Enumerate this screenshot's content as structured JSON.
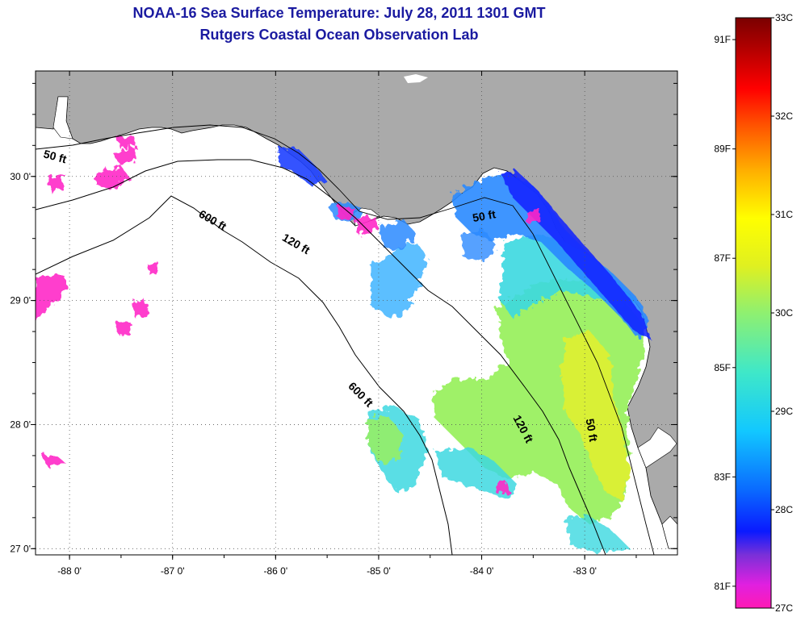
{
  "header": {
    "title": "NOAA-16 Sea Surface Temperature:  July 28, 2011 1301 GMT",
    "subtitle": "Rutgers Coastal Ocean Observation Lab"
  },
  "map": {
    "lon_range": [
      -88.33,
      -82.1
    ],
    "lat_range": [
      26.95,
      30.85
    ],
    "lon_ticks": [
      {
        "value": -88,
        "label": "-88 0'"
      },
      {
        "value": -87,
        "label": "-87 0'"
      },
      {
        "value": -86,
        "label": "-86 0'"
      },
      {
        "value": -85,
        "label": "-85 0'"
      },
      {
        "value": -84,
        "label": "-84 0'"
      },
      {
        "value": -83,
        "label": "-83 0'"
      }
    ],
    "lat_ticks": [
      {
        "value": 27,
        "label": "27 0'"
      },
      {
        "value": 28,
        "label": "28 0'"
      },
      {
        "value": 29,
        "label": "29 0'"
      },
      {
        "value": 30,
        "label": "30 0'"
      }
    ],
    "contour_labels": [
      {
        "text": "50 ft",
        "lon": -88.15,
        "lat": 30.13,
        "rotate": 15
      },
      {
        "text": "600 ft",
        "lon": -86.63,
        "lat": 29.62,
        "rotate": 30
      },
      {
        "text": "120 ft",
        "lon": -85.82,
        "lat": 29.43,
        "rotate": 30
      },
      {
        "text": "50 ft",
        "lon": -83.97,
        "lat": 29.65,
        "rotate": -10
      },
      {
        "text": "600 ft",
        "lon": -85.2,
        "lat": 28.22,
        "rotate": 45
      },
      {
        "text": "120 ft",
        "lon": -83.63,
        "lat": 27.95,
        "rotate": 62
      },
      {
        "text": "50 ft",
        "lon": -82.97,
        "lat": 27.95,
        "rotate": 80
      }
    ],
    "grid": "dotted",
    "land_color": "#aaaaaa",
    "ocean_color": "#ffffff"
  },
  "colorbar": {
    "celsius_labels": [
      "33C",
      "32C",
      "31C",
      "30C",
      "29C",
      "28C",
      "27C"
    ],
    "celsius_values": [
      33,
      32,
      31,
      30,
      29,
      28,
      27
    ],
    "fahrenheit_labels": [
      "91F",
      "89F",
      "87F",
      "85F",
      "83F",
      "81F"
    ],
    "fahrenheit_values": [
      91,
      89,
      87,
      85,
      83,
      81
    ],
    "range_c": [
      27,
      33
    ],
    "colors": [
      "#ff1ab4",
      "#e020e0",
      "#7a30d8",
      "#0a1aff",
      "#0a6aff",
      "#12c8ff",
      "#3fe8c8",
      "#8ff070",
      "#e0f020",
      "#ffff00",
      "#ffb000",
      "#ff5000",
      "#ff0000",
      "#b00000",
      "#7a0000"
    ]
  }
}
